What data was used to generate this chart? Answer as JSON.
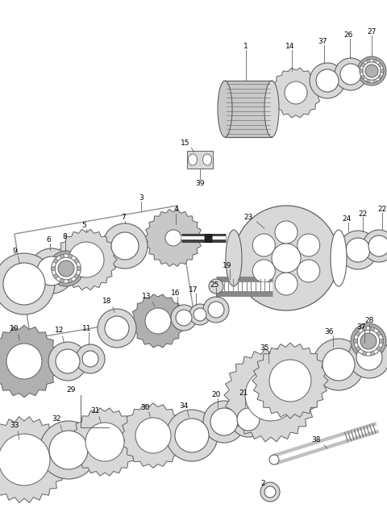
{
  "bg_color": "#ffffff",
  "line_color": "#606060",
  "fig_width": 4.8,
  "fig_height": 6.51,
  "dpi": 100,
  "lc": "#606060",
  "fc_light": "#d8d8d8",
  "fc_mid": "#b0b0b0",
  "fc_dark": "#888888",
  "fc_white": "#ffffff",
  "fc_gear": "#c8c8c8",
  "label_fs": 6.5
}
